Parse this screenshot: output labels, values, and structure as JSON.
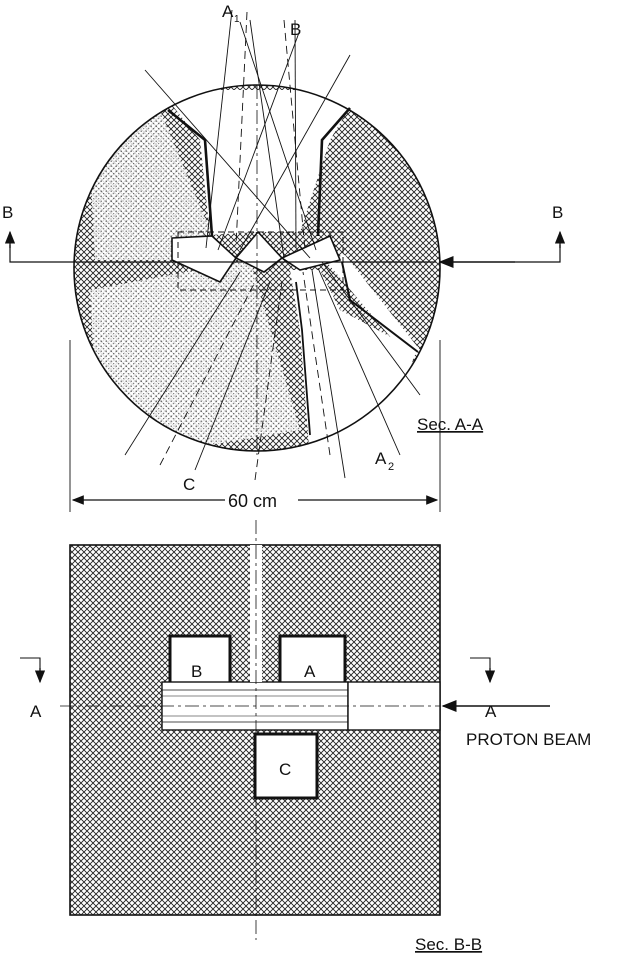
{
  "top_section": {
    "label_a1": "A",
    "label_a1_sub": "1",
    "label_b_top": "B",
    "label_a2": "A",
    "label_a2_sub": "2",
    "label_c": "C",
    "cut_left": "B",
    "cut_right": "B",
    "section_caption": "Sec. A-A",
    "dimension": "60 cm"
  },
  "bottom_section": {
    "box_b": "B",
    "box_a": "A",
    "box_c": "C",
    "cut_left": "A",
    "cut_right": "A",
    "beam_label": "PROTON BEAM",
    "section_caption": "Sec. B-B"
  },
  "colors": {
    "ink": "#111111",
    "hatch": "#222222",
    "paper": "#ffffff"
  }
}
